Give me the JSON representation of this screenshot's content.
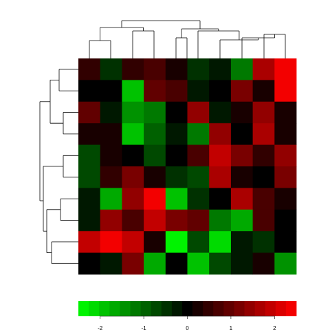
{
  "chart_data": {
    "type": "heatmap",
    "rows": 10,
    "cols": 10,
    "values": [
      [
        0.5,
        -0.5,
        0.5,
        0.8,
        0.3,
        -0.4,
        -0.2,
        -1.3,
        1.7,
        2.5
      ],
      [
        0.0,
        0.0,
        -2.0,
        1.0,
        0.8,
        -0.2,
        0.0,
        1.1,
        0.2,
        2.5
      ],
      [
        1.0,
        -0.3,
        -1.4,
        -1.2,
        0.0,
        1.5,
        -0.2,
        0.2,
        1.5,
        0.2
      ],
      [
        0.3,
        0.3,
        -2.0,
        -0.9,
        -0.3,
        -1.2,
        1.4,
        0.0,
        1.7,
        0.2
      ],
      [
        -0.6,
        0.3,
        0.1,
        -0.6,
        0.0,
        0.8,
        2.0,
        1.1,
        0.4,
        1.5
      ],
      [
        -0.6,
        0.4,
        1.3,
        0.3,
        -0.4,
        -0.6,
        1.6,
        0.3,
        0.0,
        1.2
      ],
      [
        -0.3,
        -1.6,
        1.5,
        2.5,
        -1.9,
        -0.5,
        0.0,
        1.6,
        0.6,
        0.3
      ],
      [
        -0.3,
        1.5,
        0.8,
        2.0,
        1.3,
        1.0,
        -1.2,
        -1.7,
        0.7,
        0.0
      ],
      [
        1.8,
        2.5,
        1.8,
        0.2,
        -2.5,
        -0.8,
        -2.1,
        -0.2,
        -0.5,
        0.0
      ],
      [
        0.0,
        -0.2,
        1.2,
        -1.6,
        0.0,
        -1.8,
        -0.8,
        -0.2,
        0.3,
        -1.4
      ]
    ],
    "color_scale": {
      "low_color": "#00ff00",
      "mid_color": "#000000",
      "high_color": "#ff0000",
      "range": [
        -2.5,
        2.5
      ],
      "steps": 21
    },
    "colorbar_ticks": [
      "-2",
      "-1",
      "0",
      "1",
      "2"
    ],
    "colorbar_tick_values": [
      -2,
      -1,
      0,
      1,
      2
    ],
    "row_dendrogram": true,
    "col_dendrogram": true,
    "grid": false
  }
}
